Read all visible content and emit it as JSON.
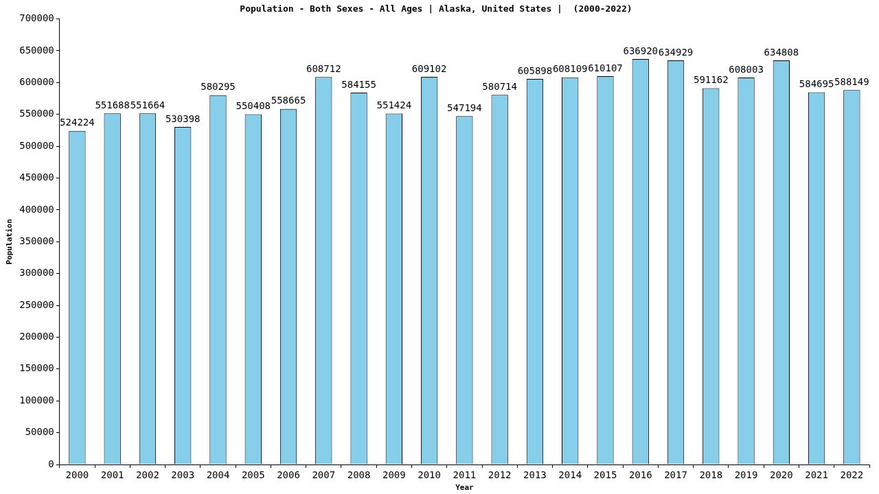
{
  "chart_data": {
    "type": "bar",
    "title": "Population - Both Sexes - All Ages | Alaska, United States |  (2000-2022)",
    "x_label": "Year",
    "y_label": "Population",
    "categories": [
      "2000",
      "2001",
      "2002",
      "2003",
      "2004",
      "2005",
      "2006",
      "2007",
      "2008",
      "2009",
      "2010",
      "2011",
      "2012",
      "2013",
      "2014",
      "2015",
      "2016",
      "2017",
      "2018",
      "2019",
      "2020",
      "2021",
      "2022"
    ],
    "values": [
      524224,
      551688,
      551664,
      530398,
      580295,
      550408,
      558665,
      608712,
      584155,
      551424,
      609102,
      547194,
      580714,
      605898,
      608109,
      610107,
      636920,
      634929,
      591162,
      608003,
      634808,
      584695,
      588149
    ],
    "color": "#87ceeb",
    "ylim": [
      0,
      700000
    ],
    "yticks": [
      0,
      50000,
      100000,
      150000,
      200000,
      250000,
      300000,
      350000,
      400000,
      450000,
      500000,
      550000,
      600000,
      650000,
      700000
    ],
    "grid": false,
    "data_labels": true
  }
}
